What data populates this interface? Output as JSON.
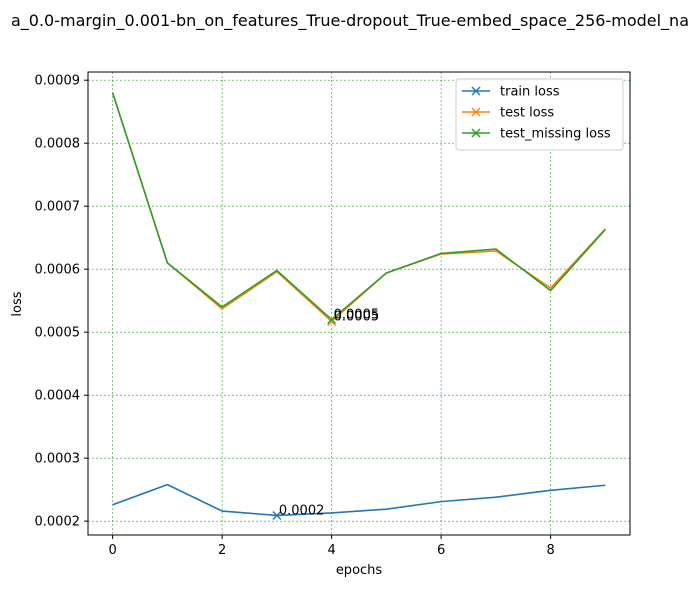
{
  "chart_data": {
    "type": "line",
    "title": "a_0.0-margin_0.001-bn_on_features_True-dropout_True-embed_space_256-model_na",
    "xlabel": "epochs",
    "ylabel": "loss",
    "x": [
      0,
      1,
      2,
      3,
      4,
      5,
      6,
      7,
      8,
      9
    ],
    "xlim": [
      -0.45,
      9.45
    ],
    "ylim": [
      0.000178,
      0.000913
    ],
    "xticks": [
      0,
      2,
      4,
      6,
      8
    ],
    "xtick_labels": [
      "0",
      "2",
      "4",
      "6",
      "8"
    ],
    "yticks": [
      0.0002,
      0.0003,
      0.0004,
      0.0005,
      0.0006,
      0.0007,
      0.0008,
      0.0009
    ],
    "ytick_labels": [
      "0.0002",
      "0.0003",
      "0.0004",
      "0.0005",
      "0.0006",
      "0.0007",
      "0.0008",
      "0.0009"
    ],
    "grid": true,
    "grid_color": "#2ca02c",
    "legend_position": "top-right",
    "series": [
      {
        "name": "train loss",
        "color": "#1f77b4",
        "values": [
          0.000226,
          0.000258,
          0.000216,
          0.000209,
          0.000213,
          0.000219,
          0.000231,
          0.000238,
          0.000249,
          0.000257
        ]
      },
      {
        "name": "test loss",
        "color": "#ff7f0e",
        "values": [
          0.00088,
          0.00061,
          0.000537,
          0.000596,
          0.000517,
          0.000594,
          0.000624,
          0.000629,
          0.00057,
          0.000664
        ]
      },
      {
        "name": "test_missing loss",
        "color": "#2ca02c",
        "values": [
          0.00088,
          0.00061,
          0.00054,
          0.000598,
          0.00052,
          0.000594,
          0.000625,
          0.000632,
          0.000566,
          0.000663
        ]
      }
    ],
    "annotations": [
      {
        "series": 0,
        "index": 3,
        "text": "0.0002"
      },
      {
        "series": 1,
        "index": 4,
        "text": "0.0005"
      },
      {
        "series": 2,
        "index": 4,
        "text": "0.0005"
      }
    ]
  }
}
